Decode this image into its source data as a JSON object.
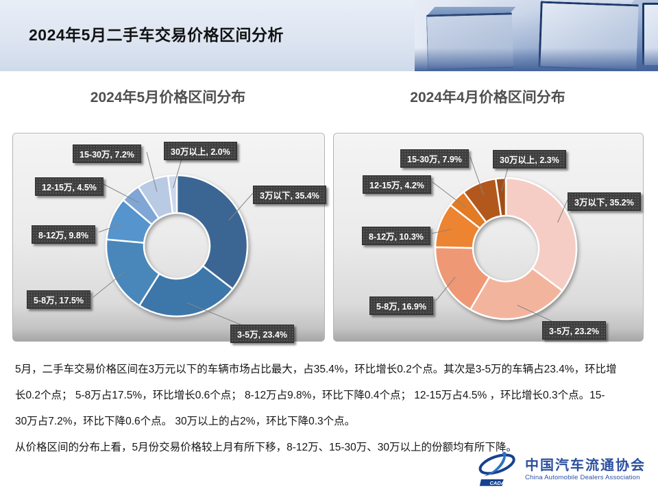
{
  "header": {
    "title": "2024年5月二手车交易价格区间分析"
  },
  "chart_data": [
    {
      "type": "pie",
      "subtype": "donut",
      "title": "2024年5月价格区间分布",
      "categories": [
        "3万以下",
        "3-5万",
        "5-8万",
        "8-12万",
        "12-15万",
        "15-30万",
        "30万以上"
      ],
      "values": [
        35.4,
        23.4,
        17.5,
        9.8,
        4.5,
        7.2,
        2.0
      ],
      "colors": [
        "#3A6694",
        "#3E76A8",
        "#4A86BA",
        "#5494CD",
        "#80A6D6",
        "#B8CAE4",
        "#CBD8EC"
      ],
      "hole": 0.47,
      "start_angle": 0,
      "clockwise": true,
      "label_format": "{category}, {value}%",
      "legend": "none"
    },
    {
      "type": "pie",
      "subtype": "donut",
      "title": "2024年4月价格区间分布",
      "categories": [
        "3万以下",
        "3-5万",
        "5-8万",
        "8-12万",
        "12-15万",
        "15-30万",
        "30万以上"
      ],
      "values": [
        35.2,
        23.2,
        16.9,
        10.3,
        4.2,
        7.9,
        2.3
      ],
      "colors": [
        "#F6CDC4",
        "#F3B49E",
        "#EF9874",
        "#EC8433",
        "#E27A26",
        "#B3591D",
        "#A34E16"
      ],
      "hole": 0.47,
      "start_angle": 0,
      "clockwise": true,
      "label_format": "{category}, {value}%",
      "legend": "none"
    }
  ],
  "analysis": {
    "lines": [
      "5月，二手车交易价格区间在3万元以下的车辆市场占比最大，占35.4%，环比增长0.2个点。其次是3-5万的车辆占23.4%，环比增",
      "长0.2个点； 5-8万占17.5%，环比增长0.6个点； 8-12万占9.8%，环比下降0.4个点； 12-15万占4.5% ，环比增长0.3个点。15-",
      "30万占7.2%，环比下降0.6个点。 30万以上的占2%，环比下降0.3个点。",
      "从价格区间的分布上看，5月份交易价格较上月有所下移，8-12万、15-30万、30万以上的份额均有所下降。"
    ]
  },
  "footer": {
    "emblem_text": "CADA",
    "org_cn": "中国汽车流通协会",
    "org_en": "China Automobile Dealers Association"
  }
}
